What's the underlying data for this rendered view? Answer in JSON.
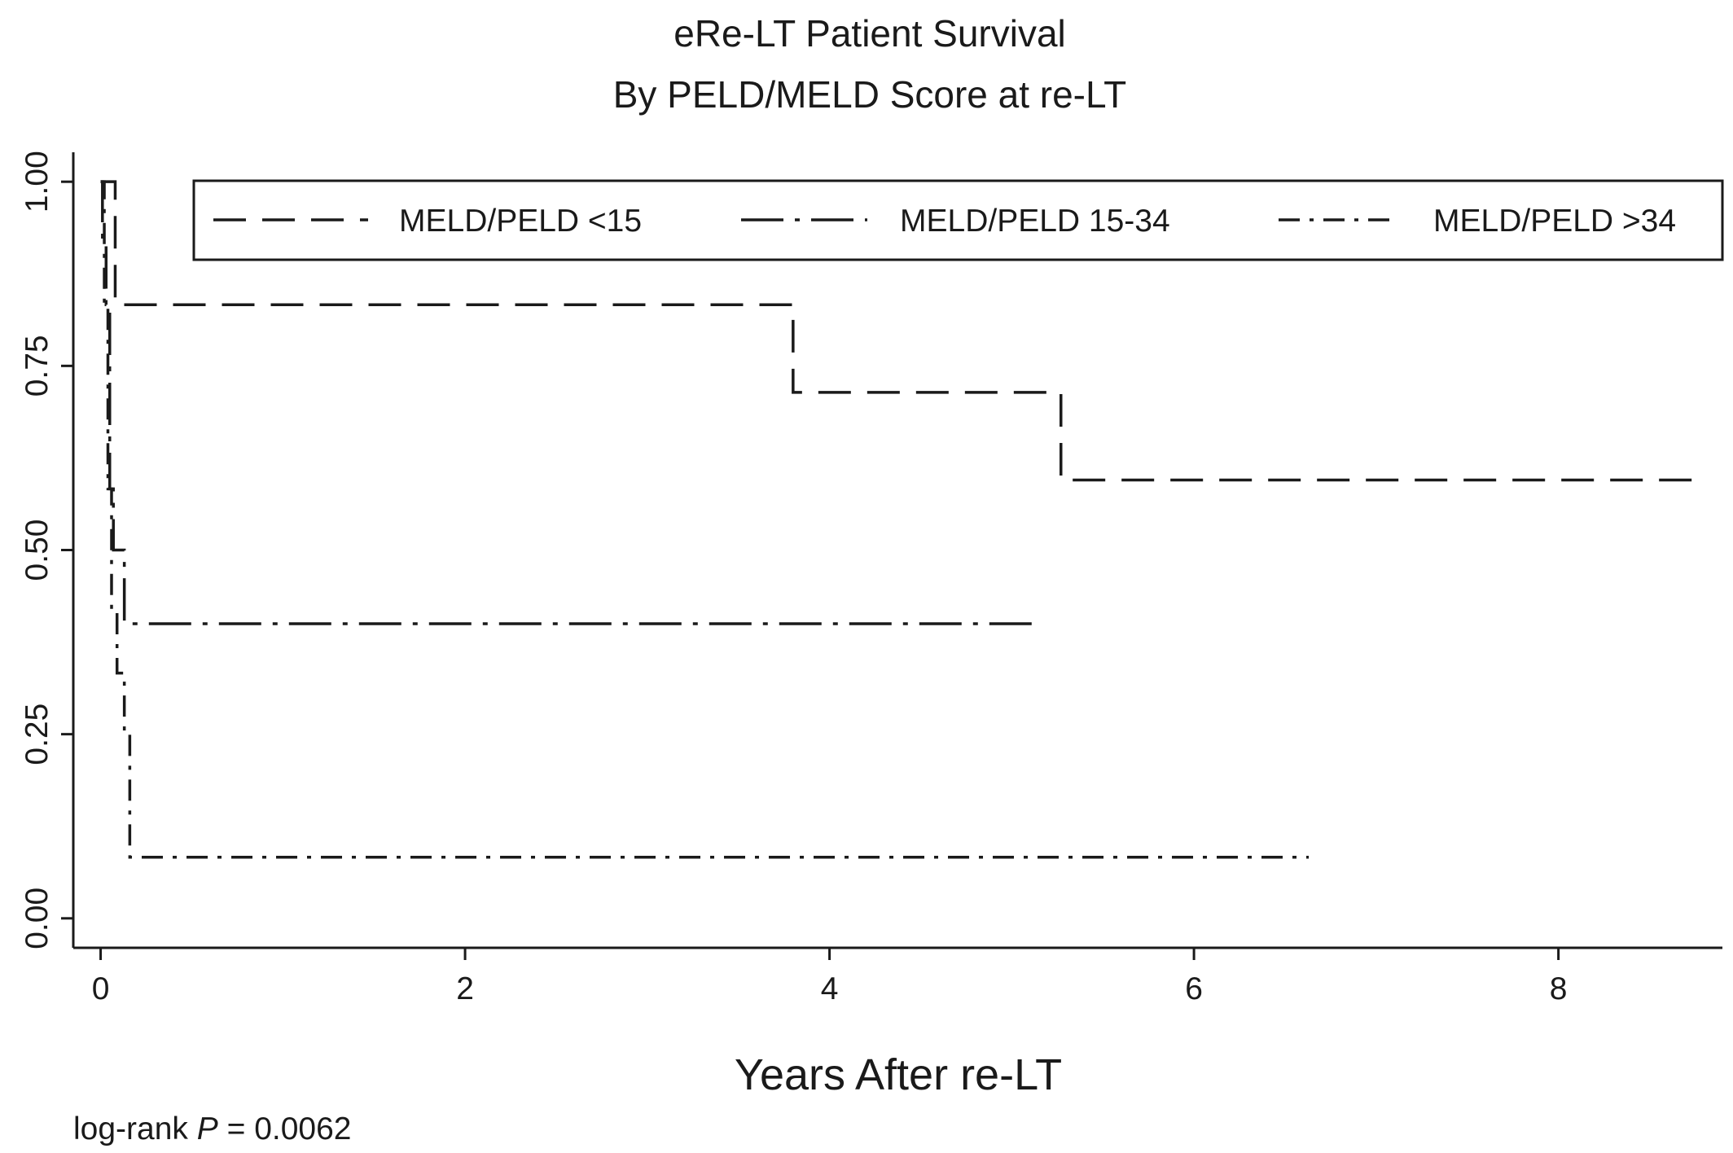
{
  "chart_data": {
    "type": "line",
    "title": "eRe-LT Patient Survival",
    "subtitle": "By PELD/MELD Score at re-LT",
    "xlabel": "Years After re-LT",
    "ylabel": "",
    "xlim": [
      -0.15,
      8.9
    ],
    "ylim": [
      -0.04,
      1.04
    ],
    "x_ticks": [
      0,
      2,
      4,
      6,
      8
    ],
    "x_tick_labels": [
      "0",
      "2",
      "4",
      "6",
      "8"
    ],
    "y_ticks": [
      0,
      0.25,
      0.5,
      0.75,
      1
    ],
    "y_tick_labels": [
      "0.00",
      "0.25",
      "0.50",
      "0.75",
      "1.00"
    ],
    "grid": false,
    "legend_placement": "top",
    "step": true,
    "series": [
      {
        "name": "MELD/PELD <15",
        "dash": "long-dash",
        "x": [
          0,
          0.08,
          3.8,
          5.27,
          8.75
        ],
        "y": [
          1.0,
          0.833,
          0.714,
          0.595,
          0.595
        ]
      },
      {
        "name": "MELD/PELD 15-34",
        "dash": "dash-dot-long",
        "x": [
          0,
          0.01,
          0.03,
          0.05,
          0.07,
          0.09,
          0.13,
          5.15
        ],
        "y": [
          1.0,
          0.917,
          0.833,
          0.583,
          0.5,
          0.5,
          0.4,
          0.4
        ]
      },
      {
        "name": "MELD/PELD >34",
        "dash": "dash-dot",
        "x": [
          0,
          0.02,
          0.04,
          0.06,
          0.09,
          0.13,
          0.16,
          6.63
        ],
        "y": [
          1.0,
          0.833,
          0.583,
          0.417,
          0.333,
          0.25,
          0.083,
          0.083
        ]
      }
    ],
    "annotation": {
      "prefix": "log-rank ",
      "p_symbol": "P",
      "suffix": " = 0.0062"
    }
  }
}
